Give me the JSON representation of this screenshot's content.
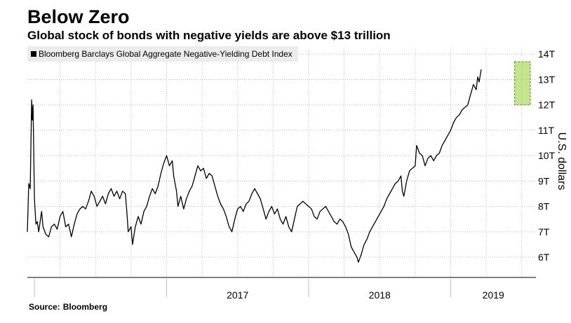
{
  "chart_data": {
    "type": "line",
    "title": "Below Zero",
    "subtitle": "Global stock of bonds with negative yields are above $13 trillion",
    "source_label": "Source:",
    "source_value": "Bloomberg",
    "ylabel": "U.S. dollars",
    "ylim": [
      5.2,
      14.2
    ],
    "yticks": [
      6,
      7,
      8,
      9,
      10,
      11,
      12,
      13,
      14
    ],
    "ytick_labels": [
      "6T",
      "7T",
      "8T",
      "9T",
      "10T",
      "11T",
      "12T",
      "13T",
      "14T"
    ],
    "x_range": [
      2016.02,
      2019.6
    ],
    "year_labels": [
      {
        "label": "2017",
        "center": 2017.5
      },
      {
        "label": "2018",
        "center": 2018.5
      },
      {
        "label": "2019",
        "center": 2019.3
      }
    ],
    "year_boundaries": [
      2017.0,
      2018.0,
      2019.0
    ],
    "legend_label": "Bloomberg Barclays Global Aggregate Negative-Yielding Debt Index",
    "highlight": {
      "x_start": 2019.45,
      "x_end": 2019.56,
      "y_low": 12.0,
      "y_high": 13.7,
      "color": "#9ad441"
    },
    "series": [
      {
        "name": "Bloomberg Barclays Global Aggregate Negative-Yielding Debt Index",
        "points": [
          [
            2016.02,
            7.0
          ],
          [
            2016.03,
            8.9
          ],
          [
            2016.04,
            8.7
          ],
          [
            2016.05,
            12.2
          ],
          [
            2016.055,
            11.4
          ],
          [
            2016.06,
            12.0
          ],
          [
            2016.07,
            8.3
          ],
          [
            2016.08,
            7.3
          ],
          [
            2016.09,
            7.4
          ],
          [
            2016.1,
            7.0
          ],
          [
            2016.12,
            7.8
          ],
          [
            2016.13,
            7.2
          ],
          [
            2016.15,
            6.9
          ],
          [
            2016.17,
            6.8
          ],
          [
            2016.19,
            7.2
          ],
          [
            2016.21,
            7.3
          ],
          [
            2016.23,
            7.1
          ],
          [
            2016.25,
            7.6
          ],
          [
            2016.27,
            7.8
          ],
          [
            2016.29,
            7.2
          ],
          [
            2016.31,
            7.3
          ],
          [
            2016.33,
            6.8
          ],
          [
            2016.35,
            7.3
          ],
          [
            2016.37,
            7.7
          ],
          [
            2016.39,
            7.9
          ],
          [
            2016.41,
            8.0
          ],
          [
            2016.43,
            7.9
          ],
          [
            2016.45,
            8.2
          ],
          [
            2016.47,
            8.6
          ],
          [
            2016.49,
            8.4
          ],
          [
            2016.51,
            8.0
          ],
          [
            2016.53,
            8.2
          ],
          [
            2016.55,
            8.4
          ],
          [
            2016.57,
            8.1
          ],
          [
            2016.59,
            8.5
          ],
          [
            2016.61,
            8.7
          ],
          [
            2016.63,
            8.4
          ],
          [
            2016.65,
            8.6
          ],
          [
            2016.67,
            8.3
          ],
          [
            2016.69,
            8.6
          ],
          [
            2016.71,
            8.5
          ],
          [
            2016.72,
            7.8
          ],
          [
            2016.73,
            7.0
          ],
          [
            2016.75,
            7.2
          ],
          [
            2016.76,
            6.5
          ],
          [
            2016.78,
            7.2
          ],
          [
            2016.8,
            7.6
          ],
          [
            2016.82,
            7.3
          ],
          [
            2016.84,
            7.8
          ],
          [
            2016.86,
            8.0
          ],
          [
            2016.88,
            8.4
          ],
          [
            2016.9,
            8.7
          ],
          [
            2016.92,
            8.5
          ],
          [
            2016.94,
            8.8
          ],
          [
            2016.96,
            9.3
          ],
          [
            2016.98,
            9.7
          ],
          [
            2017.0,
            10.0
          ],
          [
            2017.02,
            9.6
          ],
          [
            2017.04,
            9.8
          ],
          [
            2017.05,
            9.2
          ],
          [
            2017.07,
            8.6
          ],
          [
            2017.08,
            8.0
          ],
          [
            2017.1,
            8.4
          ],
          [
            2017.12,
            7.9
          ],
          [
            2017.14,
            8.3
          ],
          [
            2017.16,
            8.6
          ],
          [
            2017.18,
            8.8
          ],
          [
            2017.2,
            9.2
          ],
          [
            2017.22,
            9.6
          ],
          [
            2017.24,
            9.4
          ],
          [
            2017.26,
            9.5
          ],
          [
            2017.28,
            9.1
          ],
          [
            2017.3,
            9.3
          ],
          [
            2017.32,
            9.2
          ],
          [
            2017.34,
            8.8
          ],
          [
            2017.36,
            8.4
          ],
          [
            2017.38,
            8.1
          ],
          [
            2017.4,
            7.9
          ],
          [
            2017.42,
            7.6
          ],
          [
            2017.44,
            7.2
          ],
          [
            2017.46,
            7.0
          ],
          [
            2017.48,
            7.5
          ],
          [
            2017.5,
            7.9
          ],
          [
            2017.52,
            8.0
          ],
          [
            2017.54,
            7.8
          ],
          [
            2017.56,
            8.1
          ],
          [
            2017.58,
            8.2
          ],
          [
            2017.6,
            8.5
          ],
          [
            2017.62,
            8.7
          ],
          [
            2017.64,
            8.5
          ],
          [
            2017.66,
            8.3
          ],
          [
            2017.68,
            7.9
          ],
          [
            2017.7,
            7.5
          ],
          [
            2017.72,
            7.8
          ],
          [
            2017.74,
            8.0
          ],
          [
            2017.76,
            7.7
          ],
          [
            2017.78,
            7.9
          ],
          [
            2017.8,
            7.5
          ],
          [
            2017.82,
            7.3
          ],
          [
            2017.84,
            7.6
          ],
          [
            2017.86,
            7.2
          ],
          [
            2017.88,
            7.0
          ],
          [
            2017.9,
            7.5
          ],
          [
            2017.92,
            8.0
          ],
          [
            2017.94,
            8.1
          ],
          [
            2017.96,
            8.2
          ],
          [
            2017.98,
            8.1
          ],
          [
            2018.0,
            8.0
          ],
          [
            2018.02,
            7.9
          ],
          [
            2018.04,
            7.6
          ],
          [
            2018.06,
            7.5
          ],
          [
            2018.08,
            7.8
          ],
          [
            2018.1,
            7.9
          ],
          [
            2018.12,
            8.0
          ],
          [
            2018.14,
            7.8
          ],
          [
            2018.16,
            7.6
          ],
          [
            2018.18,
            7.4
          ],
          [
            2018.2,
            7.3
          ],
          [
            2018.22,
            7.5
          ],
          [
            2018.24,
            7.4
          ],
          [
            2018.26,
            7.2
          ],
          [
            2018.28,
            6.9
          ],
          [
            2018.3,
            6.4
          ],
          [
            2018.32,
            6.2
          ],
          [
            2018.34,
            6.0
          ],
          [
            2018.35,
            5.8
          ],
          [
            2018.37,
            6.1
          ],
          [
            2018.39,
            6.5
          ],
          [
            2018.41,
            6.7
          ],
          [
            2018.43,
            7.0
          ],
          [
            2018.45,
            7.2
          ],
          [
            2018.47,
            7.4
          ],
          [
            2018.49,
            7.6
          ],
          [
            2018.51,
            7.8
          ],
          [
            2018.53,
            8.0
          ],
          [
            2018.55,
            8.3
          ],
          [
            2018.57,
            8.5
          ],
          [
            2018.59,
            8.7
          ],
          [
            2018.61,
            8.9
          ],
          [
            2018.63,
            9.0
          ],
          [
            2018.65,
            9.2
          ],
          [
            2018.66,
            8.6
          ],
          [
            2018.67,
            8.4
          ],
          [
            2018.69,
            9.0
          ],
          [
            2018.71,
            9.4
          ],
          [
            2018.73,
            9.5
          ],
          [
            2018.75,
            9.6
          ],
          [
            2018.76,
            10.4
          ],
          [
            2018.78,
            10.1
          ],
          [
            2018.8,
            10.0
          ],
          [
            2018.82,
            9.6
          ],
          [
            2018.84,
            9.9
          ],
          [
            2018.86,
            10.0
          ],
          [
            2018.88,
            9.8
          ],
          [
            2018.9,
            10.0
          ],
          [
            2018.92,
            10.1
          ],
          [
            2018.94,
            10.4
          ],
          [
            2018.96,
            10.6
          ],
          [
            2018.98,
            10.8
          ],
          [
            2019.0,
            11.0
          ],
          [
            2019.02,
            11.3
          ],
          [
            2019.04,
            11.5
          ],
          [
            2019.06,
            11.6
          ],
          [
            2019.08,
            11.8
          ],
          [
            2019.1,
            11.9
          ],
          [
            2019.12,
            12.0
          ],
          [
            2019.14,
            12.4
          ],
          [
            2019.16,
            12.8
          ],
          [
            2019.18,
            12.6
          ],
          [
            2019.19,
            13.1
          ],
          [
            2019.2,
            12.9
          ],
          [
            2019.215,
            13.4
          ]
        ]
      }
    ]
  }
}
